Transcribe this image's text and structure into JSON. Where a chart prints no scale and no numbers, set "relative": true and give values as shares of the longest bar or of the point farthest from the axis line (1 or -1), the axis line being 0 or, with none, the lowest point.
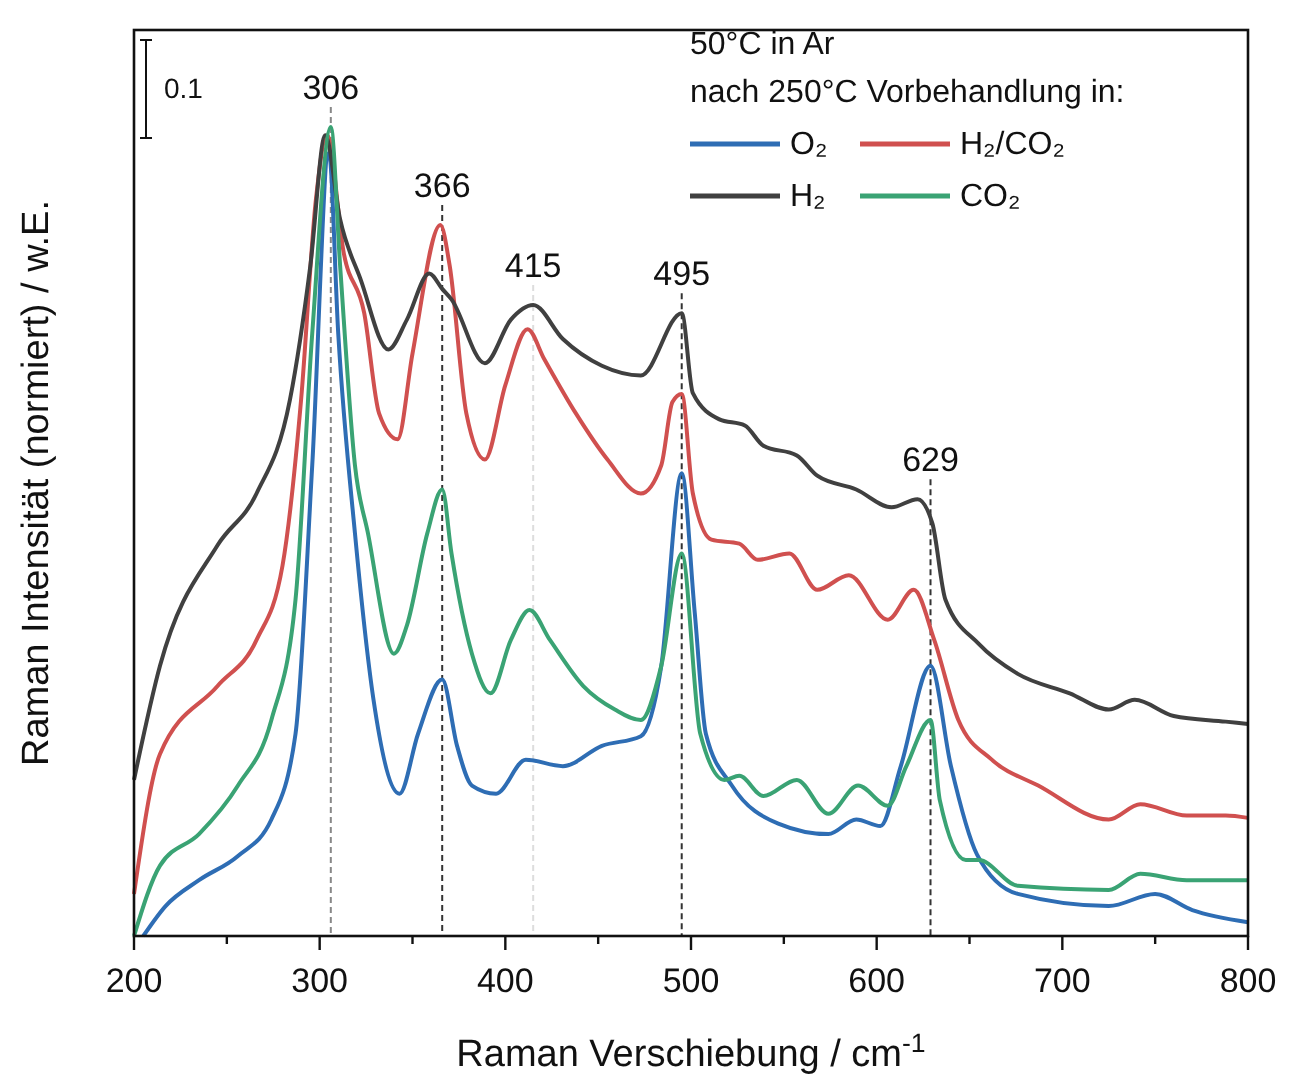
{
  "chart_data": {
    "type": "line",
    "xlabel": "Raman Verschiebung / cm$^{-1}$",
    "ylabel": "Raman Intensität (normiert) / w.E.",
    "legend_title": "50°C in Ar\nnach 250°C Vorbehandlung in:",
    "relative": true,
    "legend": "top right",
    "grid": false,
    "line_style": "solid",
    "tick_labels": "x",
    "xlim": [
      200,
      800
    ],
    "xticks": [
      200,
      {
        "value": 250,
        "label": null
      },
      300,
      {
        "value": 350,
        "label": null
      },
      400,
      {
        "value": 450,
        "label": null
      },
      500,
      {
        "value": 550,
        "label": null
      },
      600,
      {
        "value": 650,
        "label": null
      },
      700,
      {
        "value": 750,
        "label": null
      },
      800
    ],
    "annotations": [
      "0.1"
    ],
    "ref_lines": [
      {
        "axis": "x",
        "value": 306,
        "label": "306",
        "color": "#888888",
        "line_style": "dashed"
      },
      {
        "axis": "x",
        "value": 366,
        "label": "366",
        "color": "#333333",
        "line_style": "dashed"
      },
      {
        "axis": "x",
        "value": 415,
        "label": "415",
        "color": "#dddddd",
        "line_style": "dashed"
      },
      {
        "axis": "x",
        "value": 495,
        "label": "495",
        "color": "#333333",
        "line_style": "dashed"
      },
      {
        "axis": "x",
        "value": 629,
        "label": "629",
        "color": "#333333",
        "line_style": "dashed"
      }
    ],
    "series": [
      {
        "name": "O₂",
        "color": "#2e6db4",
        "x": [
          205,
          217,
          235,
          256,
          274,
          287,
          296,
          305,
          310,
          319,
          329,
          343,
          353,
          366,
          374,
          382,
          395,
          411,
          431,
          452,
          473,
          484,
          495,
          502,
          508,
          522,
          547,
          574,
          589,
          602,
          613,
          629,
          640,
          654,
          676,
          725,
          750,
          770,
          800
        ],
        "values": [
          0,
          0.037,
          0.069,
          0.099,
          0.144,
          0.25,
          0.582,
          0.968,
          0.745,
          0.498,
          0.292,
          0.176,
          0.25,
          0.317,
          0.235,
          0.186,
          0.176,
          0.218,
          0.21,
          0.235,
          0.247,
          0.334,
          0.572,
          0.4,
          0.25,
          0.186,
          0.139,
          0.126,
          0.144,
          0.136,
          0.21,
          0.334,
          0.21,
          0.101,
          0.052,
          0.037,
          0.052,
          0.032,
          0.017
        ]
      },
      {
        "name": "H₂/CO₂",
        "color": "#d0504f",
        "x": [
          200,
          214,
          245,
          266,
          280,
          290,
          298,
          304,
          313,
          324,
          332,
          342,
          350,
          365,
          370,
          379,
          389,
          400,
          412,
          421,
          438,
          455,
          473,
          484,
          490,
          495,
          501,
          511,
          526,
          536,
          553,
          568,
          585,
          606,
          620,
          631,
          644,
          662,
          687,
          725,
          742,
          767,
          788,
          800
        ],
        "values": [
          0.052,
          0.225,
          0.309,
          0.366,
          0.458,
          0.663,
          0.911,
          0.99,
          0.844,
          0.77,
          0.646,
          0.614,
          0.72,
          0.879,
          0.829,
          0.646,
          0.589,
          0.681,
          0.75,
          0.713,
          0.646,
          0.589,
          0.547,
          0.582,
          0.66,
          0.67,
          0.547,
          0.49,
          0.485,
          0.465,
          0.473,
          0.428,
          0.446,
          0.391,
          0.428,
          0.366,
          0.267,
          0.218,
          0.186,
          0.144,
          0.163,
          0.149,
          0.149,
          0.146
        ]
      },
      {
        "name": "H₂",
        "color": "#404040",
        "x": [
          200,
          214,
          245,
          266,
          284,
          295,
          303,
          311,
          322,
          337,
          347,
          359,
          366,
          371,
          389,
          403,
          415,
          431,
          452,
          473,
          495,
          501,
          515,
          529,
          539,
          557,
          568,
          589,
          608,
          622,
          630,
          637,
          655,
          676,
          704,
          725,
          739,
          760,
          788,
          800
        ],
        "values": [
          0.193,
          0.334,
          0.483,
          0.547,
          0.663,
          0.829,
          0.99,
          0.886,
          0.812,
          0.725,
          0.762,
          0.819,
          0.8,
          0.787,
          0.708,
          0.762,
          0.78,
          0.738,
          0.705,
          0.693,
          0.77,
          0.671,
          0.639,
          0.631,
          0.606,
          0.594,
          0.569,
          0.552,
          0.53,
          0.54,
          0.51,
          0.416,
          0.361,
          0.324,
          0.3,
          0.28,
          0.292,
          0.272,
          0.265,
          0.262
        ]
      },
      {
        "name": "CO₂",
        "color": "#3aa374",
        "x": [
          200,
          214,
          235,
          256,
          274,
          287,
          296,
          306,
          311,
          319,
          326,
          340,
          347,
          358,
          366,
          371,
          382,
          392,
          403,
          413,
          424,
          442,
          459,
          473,
          484,
          495,
          505,
          518,
          526,
          539,
          557,
          574,
          590,
          606,
          616,
          629,
          634,
          648,
          655,
          676,
          725,
          742,
          767,
          800
        ],
        "values": [
          0,
          0.087,
          0.126,
          0.186,
          0.267,
          0.416,
          0.745,
          1,
          0.829,
          0.582,
          0.498,
          0.349,
          0.384,
          0.498,
          0.552,
          0.473,
          0.349,
          0.3,
          0.366,
          0.403,
          0.366,
          0.309,
          0.28,
          0.267,
          0.334,
          0.473,
          0.25,
          0.193,
          0.198,
          0.173,
          0.193,
          0.151,
          0.186,
          0.161,
          0.21,
          0.267,
          0.168,
          0.094,
          0.094,
          0.062,
          0.057,
          0.077,
          0.069,
          0.069
        ]
      }
    ]
  }
}
